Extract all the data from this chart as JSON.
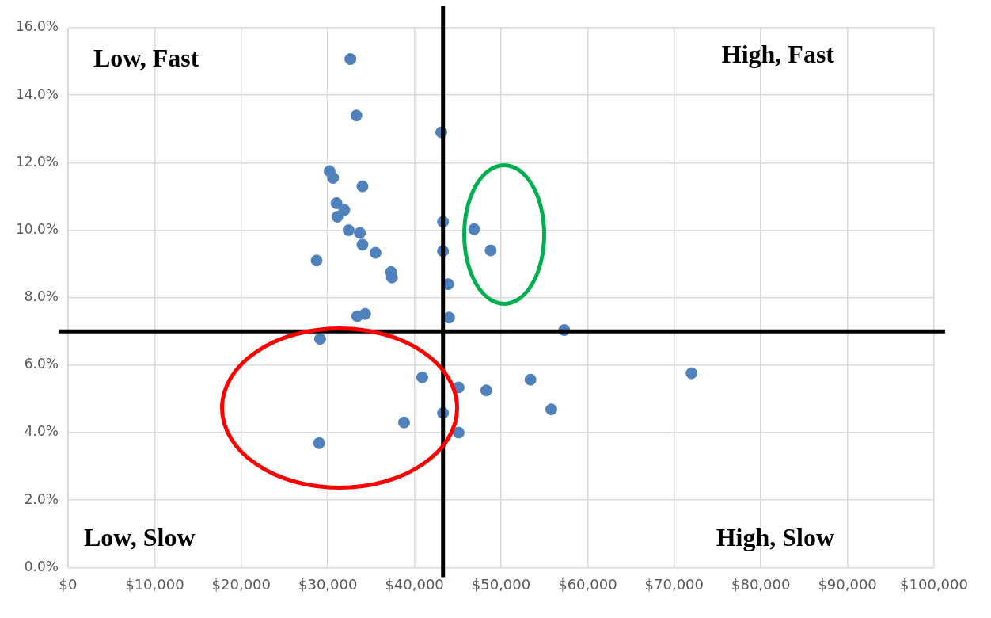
{
  "chart_data": {
    "type": "scatter",
    "x": [
      32600,
      33300,
      43100,
      30200,
      30600,
      34000,
      31000,
      31900,
      31100,
      32400,
      33700,
      43300,
      46900,
      48800,
      43300,
      34000,
      35500,
      28700,
      37300,
      37400,
      43900,
      33400,
      34300,
      44000,
      57300,
      29100,
      72000,
      40900,
      45100,
      53400,
      48300,
      55800,
      43300,
      38800,
      45100,
      29000
    ],
    "series": [
      {
        "color": "#4f81bd",
        "values": [
          15.07,
          13.4,
          12.9,
          11.75,
          11.55,
          11.3,
          10.8,
          10.6,
          10.4,
          10.0,
          9.92,
          10.25,
          10.03,
          9.4,
          9.38,
          9.57,
          9.33,
          9.1,
          8.76,
          8.6,
          8.4,
          7.45,
          7.52,
          7.41,
          7.04,
          6.78,
          5.76,
          5.64,
          5.34,
          5.57,
          5.25,
          4.69,
          4.58,
          4.3,
          4.0,
          3.69
        ]
      }
    ],
    "xlim": [
      0,
      100000
    ],
    "xticks": [
      {
        "value": 0,
        "label": "$0"
      },
      {
        "value": 10000,
        "label": "$10,000"
      },
      {
        "value": 20000,
        "label": "$20,000"
      },
      {
        "value": 30000,
        "label": "$30,000"
      },
      {
        "value": 40000,
        "label": "$40,000"
      },
      {
        "value": 50000,
        "label": "$50,000"
      },
      {
        "value": 60000,
        "label": "$60,000"
      },
      {
        "value": 70000,
        "label": "$70,000"
      },
      {
        "value": 80000,
        "label": "$80,000"
      },
      {
        "value": 90000,
        "label": "$90,000"
      },
      {
        "value": 100000,
        "label": "$100,000"
      }
    ],
    "ylim": [
      0,
      16
    ],
    "yticks": [
      {
        "value": 0,
        "label": "0.0%"
      },
      {
        "value": 2,
        "label": "2.0%"
      },
      {
        "value": 4,
        "label": "4.0%"
      },
      {
        "value": 6,
        "label": "6.0%"
      },
      {
        "value": 8,
        "label": "8.0%"
      },
      {
        "value": 10,
        "label": "10.0%"
      },
      {
        "value": 12,
        "label": "12.0%"
      },
      {
        "value": 14,
        "label": "14.0%"
      },
      {
        "value": 16,
        "label": "16.0%"
      }
    ],
    "ref_lines": [
      {
        "axis": "x",
        "value": 43300,
        "color": "#000000"
      },
      {
        "axis": "y",
        "value": 7,
        "color": "#000000"
      }
    ],
    "annotations": [
      "Low, Fast",
      "High, Fast",
      "Low, Slow",
      "High, Slow"
    ],
    "grid": true,
    "marker": "circle",
    "legend": false
  }
}
